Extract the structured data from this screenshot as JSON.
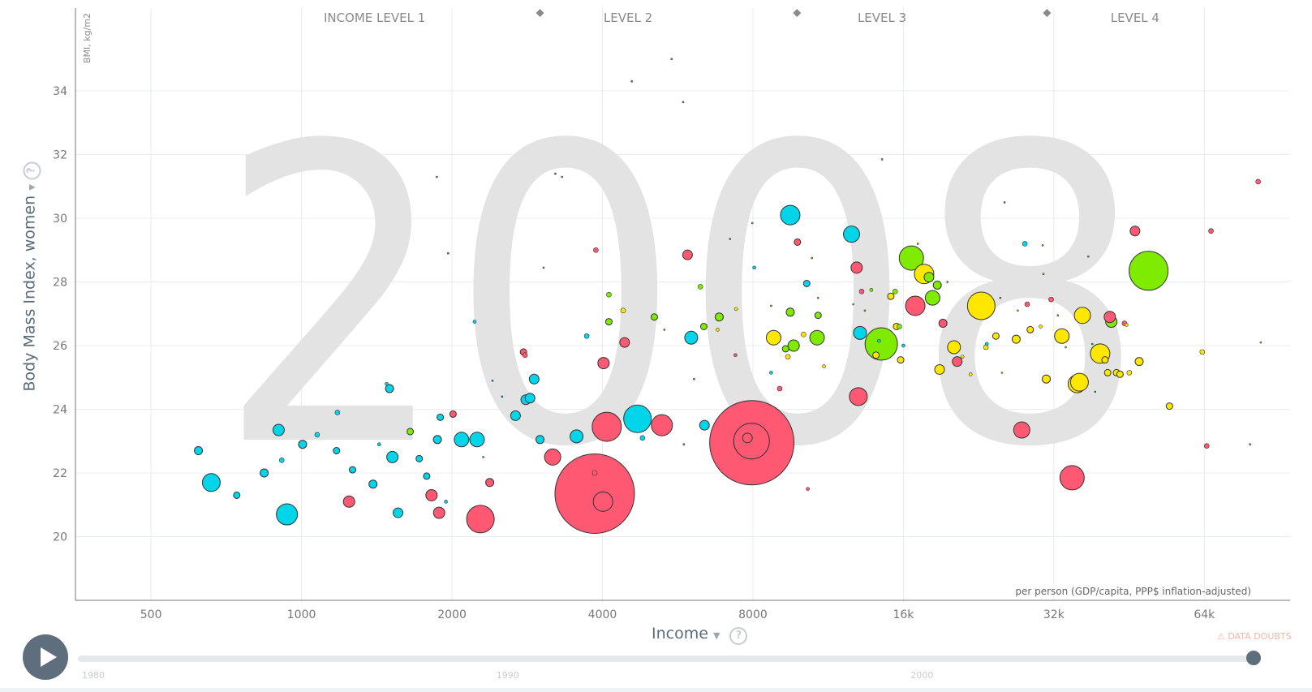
{
  "chart_data": {
    "type": "scatter",
    "title": "",
    "year": "2008",
    "xlabel": "Income",
    "xlabel_note": "per person (GDP/capita, PPP$ inflation-adjusted)",
    "ylabel": "Body Mass Index, women",
    "y_unit": "BMI, kg/m2",
    "x_scale": "log",
    "xlim": [
      353,
      95000
    ],
    "ylim": [
      18,
      36.6
    ],
    "x_ticks": [
      {
        "value": 500,
        "label": "500"
      },
      {
        "value": 1000,
        "label": "1000"
      },
      {
        "value": 2000,
        "label": "2000"
      },
      {
        "value": 4000,
        "label": "4000"
      },
      {
        "value": 8000,
        "label": "8000"
      },
      {
        "value": 16000,
        "label": "16k"
      },
      {
        "value": 32000,
        "label": "32k"
      },
      {
        "value": 64000,
        "label": "64k"
      }
    ],
    "y_ticks": [
      20,
      22,
      24,
      26,
      28,
      30,
      32,
      34
    ],
    "income_levels": [
      {
        "label": "INCOME LEVEL 1",
        "x_center": 1400
      },
      {
        "label": "LEVEL 2",
        "x_center": 4500
      },
      {
        "label": "LEVEL 3",
        "x_center": 14500
      },
      {
        "label": "LEVEL 4",
        "x_center": 46500
      }
    ],
    "level_boundaries": [
      3000,
      9800,
      31000
    ],
    "grid": true,
    "colors": {
      "africa": "#00d5e9",
      "asia": "#ff5872",
      "europe": "#7feb00",
      "americas": "#ffe700"
    },
    "points": [
      {
        "x": 622,
        "y": 22.7,
        "r": 5,
        "c": "africa"
      },
      {
        "x": 660,
        "y": 21.7,
        "r": 11,
        "c": "africa"
      },
      {
        "x": 742,
        "y": 21.3,
        "r": 4,
        "c": "africa"
      },
      {
        "x": 842,
        "y": 22.0,
        "r": 5,
        "c": "africa"
      },
      {
        "x": 900,
        "y": 23.35,
        "r": 7,
        "c": "africa"
      },
      {
        "x": 913,
        "y": 22.4,
        "r": 3,
        "c": "africa"
      },
      {
        "x": 935,
        "y": 20.7,
        "r": 13,
        "c": "africa"
      },
      {
        "x": 1005,
        "y": 22.9,
        "r": 5,
        "c": "africa"
      },
      {
        "x": 1075,
        "y": 23.2,
        "r": 3,
        "c": "africa"
      },
      {
        "x": 1175,
        "y": 22.7,
        "r": 4,
        "c": "africa"
      },
      {
        "x": 1180,
        "y": 23.9,
        "r": 3,
        "c": "africa"
      },
      {
        "x": 1245,
        "y": 21.1,
        "r": 7,
        "c": "asia"
      },
      {
        "x": 1265,
        "y": 22.1,
        "r": 4,
        "c": "africa"
      },
      {
        "x": 1390,
        "y": 21.65,
        "r": 5,
        "c": "africa"
      },
      {
        "x": 1430,
        "y": 22.9,
        "r": 2,
        "c": "africa"
      },
      {
        "x": 1480,
        "y": 24.8,
        "r": 2,
        "c": "africa"
      },
      {
        "x": 1500,
        "y": 24.65,
        "r": 5,
        "c": "africa"
      },
      {
        "x": 1520,
        "y": 22.5,
        "r": 7,
        "c": "africa"
      },
      {
        "x": 1560,
        "y": 20.75,
        "r": 6,
        "c": "africa"
      },
      {
        "x": 1650,
        "y": 23.3,
        "r": 4,
        "c": "europe"
      },
      {
        "x": 1720,
        "y": 22.45,
        "r": 4,
        "c": "africa"
      },
      {
        "x": 1780,
        "y": 21.9,
        "r": 4,
        "c": "africa"
      },
      {
        "x": 1820,
        "y": 21.3,
        "r": 7,
        "c": "asia"
      },
      {
        "x": 1865,
        "y": 31.3,
        "r": 1,
        "c": "asia"
      },
      {
        "x": 1870,
        "y": 23.05,
        "r": 5,
        "c": "africa"
      },
      {
        "x": 1885,
        "y": 20.75,
        "r": 7,
        "c": "asia"
      },
      {
        "x": 1895,
        "y": 23.75,
        "r": 4,
        "c": "africa"
      },
      {
        "x": 1945,
        "y": 21.1,
        "r": 2,
        "c": "africa"
      },
      {
        "x": 1965,
        "y": 28.9,
        "r": 1,
        "c": "asia"
      },
      {
        "x": 2010,
        "y": 23.85,
        "r": 4,
        "c": "asia"
      },
      {
        "x": 2090,
        "y": 23.05,
        "r": 9,
        "c": "africa"
      },
      {
        "x": 2220,
        "y": 26.75,
        "r": 2,
        "c": "africa"
      },
      {
        "x": 2245,
        "y": 23.05,
        "r": 9,
        "c": "africa"
      },
      {
        "x": 2280,
        "y": 20.55,
        "r": 17,
        "c": "asia"
      },
      {
        "x": 2310,
        "y": 22.5,
        "r": 1,
        "c": "africa"
      },
      {
        "x": 2380,
        "y": 21.7,
        "r": 5,
        "c": "asia"
      },
      {
        "x": 2410,
        "y": 24.9,
        "r": 1,
        "c": "africa"
      },
      {
        "x": 2520,
        "y": 24.4,
        "r": 1,
        "c": "africa"
      },
      {
        "x": 2680,
        "y": 23.8,
        "r": 6,
        "c": "africa"
      },
      {
        "x": 2780,
        "y": 25.8,
        "r": 4,
        "c": "asia"
      },
      {
        "x": 2800,
        "y": 25.7,
        "r": 3,
        "c": "asia"
      },
      {
        "x": 2810,
        "y": 24.3,
        "r": 6,
        "c": "africa"
      },
      {
        "x": 2865,
        "y": 24.35,
        "r": 6,
        "c": "africa"
      },
      {
        "x": 2920,
        "y": 24.95,
        "r": 6,
        "c": "africa"
      },
      {
        "x": 3000,
        "y": 23.05,
        "r": 5,
        "c": "africa"
      },
      {
        "x": 3050,
        "y": 28.45,
        "r": 1,
        "c": "asia"
      },
      {
        "x": 3180,
        "y": 22.5,
        "r": 10,
        "c": "asia"
      },
      {
        "x": 3220,
        "y": 31.4,
        "r": 1,
        "c": "asia"
      },
      {
        "x": 3320,
        "y": 31.3,
        "r": 1,
        "c": "asia"
      },
      {
        "x": 3550,
        "y": 23.15,
        "r": 8,
        "c": "africa"
      },
      {
        "x": 3720,
        "y": 26.3,
        "r": 3,
        "c": "africa"
      },
      {
        "x": 3880,
        "y": 29.0,
        "r": 3,
        "c": "asia"
      },
      {
        "x": 3860,
        "y": 21.35,
        "r": 49,
        "c": "asia"
      },
      {
        "x": 3860,
        "y": 22.0,
        "r": 3,
        "c": "asia"
      },
      {
        "x": 4010,
        "y": 21.1,
        "r": 12,
        "c": "asia"
      },
      {
        "x": 4020,
        "y": 25.45,
        "r": 7,
        "c": "asia"
      },
      {
        "x": 4080,
        "y": 23.45,
        "r": 18,
        "c": "asia"
      },
      {
        "x": 4120,
        "y": 27.6,
        "r": 3,
        "c": "europe"
      },
      {
        "x": 4120,
        "y": 26.75,
        "r": 4,
        "c": "europe"
      },
      {
        "x": 4400,
        "y": 27.1,
        "r": 3,
        "c": "americas"
      },
      {
        "x": 4430,
        "y": 26.1,
        "r": 6,
        "c": "asia"
      },
      {
        "x": 4580,
        "y": 34.3,
        "r": 1,
        "c": "asia"
      },
      {
        "x": 4700,
        "y": 23.7,
        "r": 17,
        "c": "africa"
      },
      {
        "x": 4810,
        "y": 23.1,
        "r": 3,
        "c": "africa"
      },
      {
        "x": 5080,
        "y": 26.9,
        "r": 4,
        "c": "europe"
      },
      {
        "x": 5320,
        "y": 26.5,
        "r": 1,
        "c": "europe"
      },
      {
        "x": 5260,
        "y": 23.5,
        "r": 13,
        "c": "asia"
      },
      {
        "x": 5500,
        "y": 35.0,
        "r": 1,
        "c": "asia"
      },
      {
        "x": 5800,
        "y": 33.65,
        "r": 1,
        "c": "asia"
      },
      {
        "x": 5820,
        "y": 22.9,
        "r": 1,
        "c": "asia"
      },
      {
        "x": 5920,
        "y": 28.85,
        "r": 6,
        "c": "asia"
      },
      {
        "x": 6020,
        "y": 26.25,
        "r": 8,
        "c": "africa"
      },
      {
        "x": 6100,
        "y": 24.95,
        "r": 1,
        "c": "africa"
      },
      {
        "x": 6280,
        "y": 27.85,
        "r": 3,
        "c": "europe"
      },
      {
        "x": 6380,
        "y": 26.6,
        "r": 4,
        "c": "europe"
      },
      {
        "x": 6400,
        "y": 23.5,
        "r": 6,
        "c": "africa"
      },
      {
        "x": 6800,
        "y": 26.5,
        "r": 2,
        "c": "americas"
      },
      {
        "x": 6850,
        "y": 26.9,
        "r": 5,
        "c": "europe"
      },
      {
        "x": 7200,
        "y": 29.35,
        "r": 1,
        "c": "asia"
      },
      {
        "x": 7380,
        "y": 25.7,
        "r": 2,
        "c": "asia"
      },
      {
        "x": 7400,
        "y": 27.15,
        "r": 2,
        "c": "americas"
      },
      {
        "x": 7960,
        "y": 22.95,
        "r": 52,
        "c": "asia"
      },
      {
        "x": 7950,
        "y": 23.0,
        "r": 22,
        "c": "asia"
      },
      {
        "x": 7800,
        "y": 23.1,
        "r": 6,
        "c": "asia"
      },
      {
        "x": 8050,
        "y": 28.45,
        "r": 2,
        "c": "africa"
      },
      {
        "x": 7980,
        "y": 29.85,
        "r": 1,
        "c": "europe"
      },
      {
        "x": 8700,
        "y": 25.15,
        "r": 2,
        "c": "africa"
      },
      {
        "x": 8700,
        "y": 27.25,
        "r": 1,
        "c": "europe"
      },
      {
        "x": 8800,
        "y": 26.25,
        "r": 9,
        "c": "americas"
      },
      {
        "x": 9050,
        "y": 24.65,
        "r": 3,
        "c": "asia"
      },
      {
        "x": 9300,
        "y": 25.9,
        "r": 4,
        "c": "europe"
      },
      {
        "x": 9400,
        "y": 25.65,
        "r": 3,
        "c": "americas"
      },
      {
        "x": 9500,
        "y": 27.05,
        "r": 5,
        "c": "europe"
      },
      {
        "x": 9500,
        "y": 30.1,
        "r": 12,
        "c": "africa"
      },
      {
        "x": 9650,
        "y": 26.0,
        "r": 7,
        "c": "europe"
      },
      {
        "x": 9820,
        "y": 29.25,
        "r": 4,
        "c": "asia"
      },
      {
        "x": 10100,
        "y": 26.35,
        "r": 3,
        "c": "americas"
      },
      {
        "x": 10300,
        "y": 21.5,
        "r": 2,
        "c": "asia"
      },
      {
        "x": 10250,
        "y": 27.95,
        "r": 4,
        "c": "africa"
      },
      {
        "x": 10500,
        "y": 28.75,
        "r": 1,
        "c": "europe"
      },
      {
        "x": 10750,
        "y": 26.25,
        "r": 9,
        "c": "europe"
      },
      {
        "x": 10800,
        "y": 27.5,
        "r": 1,
        "c": "europe"
      },
      {
        "x": 10800,
        "y": 26.95,
        "r": 4,
        "c": "europe"
      },
      {
        "x": 11100,
        "y": 25.35,
        "r": 2,
        "c": "americas"
      },
      {
        "x": 12600,
        "y": 29.5,
        "r": 10,
        "c": "africa"
      },
      {
        "x": 12700,
        "y": 27.3,
        "r": 1,
        "c": "europe"
      },
      {
        "x": 12900,
        "y": 28.45,
        "r": 7,
        "c": "asia"
      },
      {
        "x": 13000,
        "y": 24.4,
        "r": 11,
        "c": "asia"
      },
      {
        "x": 13100,
        "y": 26.4,
        "r": 8,
        "c": "africa"
      },
      {
        "x": 13200,
        "y": 27.7,
        "r": 3,
        "c": "asia"
      },
      {
        "x": 13400,
        "y": 27.1,
        "r": 1,
        "c": "europe"
      },
      {
        "x": 13800,
        "y": 27.75,
        "r": 2,
        "c": "europe"
      },
      {
        "x": 14100,
        "y": 25.7,
        "r": 4,
        "c": "americas"
      },
      {
        "x": 14450,
        "y": 26.05,
        "r": 20,
        "c": "europe"
      },
      {
        "x": 14300,
        "y": 26.15,
        "r": 2,
        "c": "africa"
      },
      {
        "x": 14500,
        "y": 31.85,
        "r": 1,
        "c": "asia"
      },
      {
        "x": 15100,
        "y": 27.55,
        "r": 4,
        "c": "americas"
      },
      {
        "x": 15400,
        "y": 27.7,
        "r": 3,
        "c": "europe"
      },
      {
        "x": 15500,
        "y": 26.6,
        "r": 4,
        "c": "americas"
      },
      {
        "x": 15700,
        "y": 26.6,
        "r": 3,
        "c": "europe"
      },
      {
        "x": 15800,
        "y": 25.55,
        "r": 4,
        "c": "americas"
      },
      {
        "x": 16000,
        "y": 26.0,
        "r": 2,
        "c": "africa"
      },
      {
        "x": 16600,
        "y": 28.75,
        "r": 15,
        "c": "europe"
      },
      {
        "x": 16900,
        "y": 27.25,
        "r": 12,
        "c": "asia"
      },
      {
        "x": 17100,
        "y": 29.2,
        "r": 1,
        "c": "europe"
      },
      {
        "x": 17600,
        "y": 28.25,
        "r": 12,
        "c": "americas"
      },
      {
        "x": 18000,
        "y": 28.15,
        "r": 6,
        "c": "europe"
      },
      {
        "x": 18300,
        "y": 27.5,
        "r": 9,
        "c": "europe"
      },
      {
        "x": 18700,
        "y": 27.9,
        "r": 5,
        "c": "europe"
      },
      {
        "x": 18900,
        "y": 25.25,
        "r": 6,
        "c": "americas"
      },
      {
        "x": 19200,
        "y": 26.7,
        "r": 5,
        "c": "asia"
      },
      {
        "x": 19600,
        "y": 28.0,
        "r": 1,
        "c": "europe"
      },
      {
        "x": 20200,
        "y": 25.95,
        "r": 8,
        "c": "americas"
      },
      {
        "x": 20500,
        "y": 25.5,
        "r": 6,
        "c": "asia"
      },
      {
        "x": 21000,
        "y": 25.65,
        "r": 2,
        "c": "americas"
      },
      {
        "x": 21800,
        "y": 25.1,
        "r": 2,
        "c": "americas"
      },
      {
        "x": 22900,
        "y": 27.25,
        "r": 17,
        "c": "americas"
      },
      {
        "x": 23400,
        "y": 25.95,
        "r": 3,
        "c": "americas"
      },
      {
        "x": 23500,
        "y": 26.05,
        "r": 2,
        "c": "africa"
      },
      {
        "x": 24500,
        "y": 26.3,
        "r": 4,
        "c": "americas"
      },
      {
        "x": 25200,
        "y": 25.15,
        "r": 1,
        "c": "americas"
      },
      {
        "x": 25500,
        "y": 30.5,
        "r": 1,
        "c": "asia"
      },
      {
        "x": 25000,
        "y": 27.5,
        "r": 1,
        "c": "asia"
      },
      {
        "x": 26900,
        "y": 26.2,
        "r": 5,
        "c": "americas"
      },
      {
        "x": 27100,
        "y": 27.1,
        "r": 1,
        "c": "americas"
      },
      {
        "x": 27600,
        "y": 23.35,
        "r": 10,
        "c": "asia"
      },
      {
        "x": 28000,
        "y": 29.2,
        "r": 3,
        "c": "africa"
      },
      {
        "x": 28300,
        "y": 27.3,
        "r": 3,
        "c": "asia"
      },
      {
        "x": 28700,
        "y": 26.5,
        "r": 4,
        "c": "americas"
      },
      {
        "x": 30100,
        "y": 26.6,
        "r": 2,
        "c": "americas"
      },
      {
        "x": 30400,
        "y": 29.15,
        "r": 1,
        "c": "europe"
      },
      {
        "x": 30500,
        "y": 28.25,
        "r": 1,
        "c": "europe"
      },
      {
        "x": 30900,
        "y": 24.95,
        "r": 5,
        "c": "americas"
      },
      {
        "x": 31600,
        "y": 27.45,
        "r": 3,
        "c": "asia"
      },
      {
        "x": 32600,
        "y": 26.95,
        "r": 1,
        "c": "europe"
      },
      {
        "x": 33200,
        "y": 26.3,
        "r": 9,
        "c": "americas"
      },
      {
        "x": 33800,
        "y": 25.95,
        "r": 1,
        "c": "americas"
      },
      {
        "x": 34800,
        "y": 21.85,
        "r": 15,
        "c": "asia"
      },
      {
        "x": 35600,
        "y": 24.8,
        "r": 11,
        "c": "americas"
      },
      {
        "x": 36000,
        "y": 24.85,
        "r": 11,
        "c": "americas"
      },
      {
        "x": 36500,
        "y": 26.95,
        "r": 10,
        "c": "americas"
      },
      {
        "x": 37500,
        "y": 28.8,
        "r": 1,
        "c": "asia"
      },
      {
        "x": 38200,
        "y": 26.05,
        "r": 1,
        "c": "africa"
      },
      {
        "x": 38700,
        "y": 24.55,
        "r": 1,
        "c": "africa"
      },
      {
        "x": 39600,
        "y": 25.75,
        "r": 12,
        "c": "americas"
      },
      {
        "x": 40500,
        "y": 25.55,
        "r": 4,
        "c": "americas"
      },
      {
        "x": 41000,
        "y": 25.15,
        "r": 4,
        "c": "americas"
      },
      {
        "x": 41700,
        "y": 26.75,
        "r": 7,
        "c": "europe"
      },
      {
        "x": 41400,
        "y": 26.9,
        "r": 7,
        "c": "asia"
      },
      {
        "x": 42700,
        "y": 25.15,
        "r": 4,
        "c": "americas"
      },
      {
        "x": 43400,
        "y": 25.1,
        "r": 4,
        "c": "americas"
      },
      {
        "x": 44300,
        "y": 26.7,
        "r": 3,
        "c": "asia"
      },
      {
        "x": 44700,
        "y": 26.65,
        "r": 2,
        "c": "americas"
      },
      {
        "x": 45300,
        "y": 25.15,
        "r": 3,
        "c": "americas"
      },
      {
        "x": 46500,
        "y": 29.6,
        "r": 6,
        "c": "asia"
      },
      {
        "x": 47400,
        "y": 25.5,
        "r": 5,
        "c": "americas"
      },
      {
        "x": 49500,
        "y": 28.35,
        "r": 24,
        "c": "europe"
      },
      {
        "x": 54500,
        "y": 24.1,
        "r": 4,
        "c": "americas"
      },
      {
        "x": 63400,
        "y": 25.8,
        "r": 3,
        "c": "americas"
      },
      {
        "x": 64700,
        "y": 22.85,
        "r": 3,
        "c": "asia"
      },
      {
        "x": 66000,
        "y": 29.6,
        "r": 3,
        "c": "asia"
      },
      {
        "x": 79000,
        "y": 22.9,
        "r": 1,
        "c": "asia"
      },
      {
        "x": 82000,
        "y": 31.15,
        "r": 3,
        "c": "asia"
      },
      {
        "x": 83000,
        "y": 26.1,
        "r": 1,
        "c": "americas"
      }
    ]
  },
  "controls": {
    "x_help": "?",
    "y_help": "?",
    "x_dropdown": "▼",
    "y_dropdown": "▼",
    "data_doubts": "⚠ DATA DOUBTS",
    "timeline": {
      "start": 1980,
      "end": 2008,
      "current": 2008,
      "labels": [
        "1980",
        "1990",
        "2000"
      ]
    }
  }
}
